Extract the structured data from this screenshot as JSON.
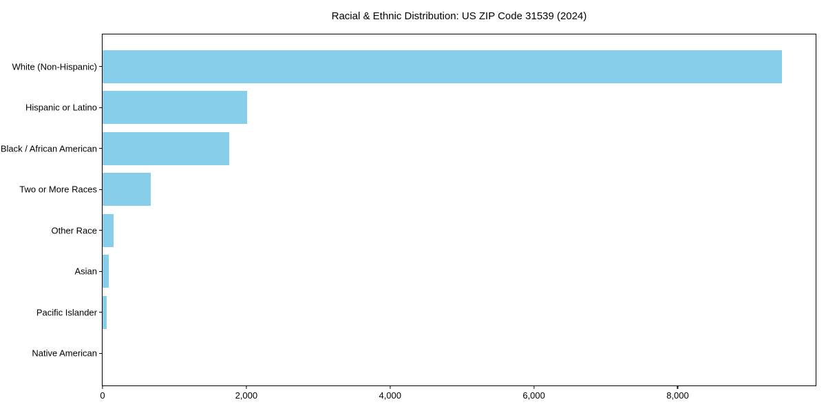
{
  "chart_data": {
    "type": "bar",
    "orientation": "horizontal",
    "title": "Racial & Ethnic Distribution: US ZIP Code 31539 (2024)",
    "categories": [
      "White (Non-Hispanic)",
      "Hispanic or Latino",
      "Black / African American",
      "Two or More Races",
      "Other Race",
      "Asian",
      "Pacific Islander",
      "Native American"
    ],
    "values": [
      9450,
      2010,
      1760,
      670,
      150,
      90,
      55,
      0
    ],
    "xlabel": "",
    "ylabel": "",
    "xlim": [
      0,
      9920
    ],
    "xticks": [
      0,
      2000,
      4000,
      6000,
      8000
    ],
    "xtick_labels": [
      "0",
      "2,000",
      "4,000",
      "6,000",
      "8,000"
    ],
    "bar_color": "#87CEEB",
    "axis_color": "#000000",
    "background_color": "#FFFFFF",
    "grid": false,
    "legend": "none"
  }
}
